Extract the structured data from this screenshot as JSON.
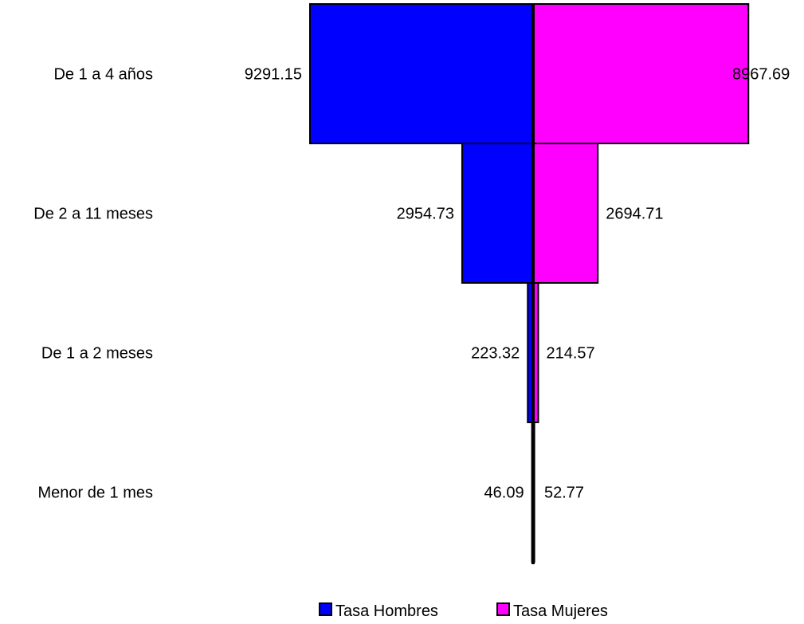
{
  "chart_data": {
    "type": "bar",
    "orientation": "horizontal-pyramid",
    "categories": [
      "De 1 a 4 años",
      "De 2 a 11 meses",
      "De 1 a 2 meses",
      "Menor de 1 mes"
    ],
    "series": [
      {
        "name": "Tasa Hombres",
        "values": [
          9291.15,
          2954.73,
          223.32,
          46.09
        ],
        "color": "#0000ff",
        "side": "left"
      },
      {
        "name": "Tasa Mujeres",
        "values": [
          8967.69,
          2694.71,
          214.57,
          52.77
        ],
        "color": "#ff00ff",
        "side": "right"
      }
    ],
    "value_labels": {
      "Tasa Hombres": [
        "9291.15",
        "2954.73",
        "223.32",
        "46.09"
      ],
      "Tasa Mujeres": [
        "8967.69",
        "2694.71",
        "214.57",
        "52.77"
      ]
    },
    "xlim": [
      -9291.15,
      9291.15
    ],
    "title": "",
    "xlabel": "",
    "ylabel": "",
    "grid": false,
    "legend_position": "bottom"
  }
}
